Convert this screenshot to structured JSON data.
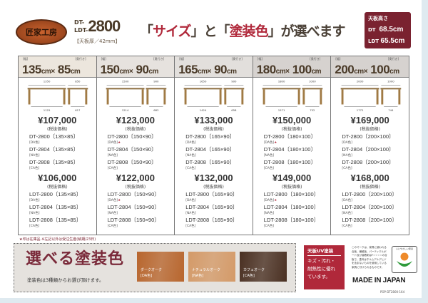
{
  "header": {
    "logo_text": "匠家工房",
    "model_prefix_1": "DT-",
    "model_prefix_2": "LDT-",
    "model_number": "2800",
    "thickness": "【天板厚／42mm】",
    "headline_q1": "「",
    "headline_size": "サイズ",
    "headline_q2": "」と「",
    "headline_color": "塗装色",
    "headline_q3": "」が選べます",
    "height_title": "天板高さ",
    "height_dt_label": "DT",
    "height_dt_value": "68.5cm",
    "height_ldt_label": "LDT",
    "height_ldt_value": "65.5cm"
  },
  "labels": {
    "width": "[幅]",
    "depth": "[奥行き]",
    "tax": "(税抜価格)",
    "cm": "cm",
    "x": "×"
  },
  "columns": [
    {
      "w": "135",
      "d": "85",
      "dims": [
        "1350",
        "850",
        "1125",
        "617"
      ],
      "dt_price": "¥107,000",
      "ldt_price": "¥106,000",
      "dt": [
        {
          "n": "DT-2800〔135×85〕",
          "c": "[DA色]",
          "star": ""
        },
        {
          "n": "DT-2804〔135×85〕",
          "c": "[NA色]",
          "star": ""
        },
        {
          "n": "DT-2808〔135×85〕",
          "c": "[CA色]",
          "star": ""
        }
      ],
      "ldt": [
        {
          "n": "LDT-2800〔135×85〕",
          "c": "[DA色]",
          "star": ""
        },
        {
          "n": "LDT-2804〔135×85〕",
          "c": "[NA色]",
          "star": ""
        },
        {
          "n": "LDT-2808〔135×85〕",
          "c": "[CA色]",
          "star": ""
        }
      ]
    },
    {
      "w": "150",
      "d": "90",
      "dims": [
        "1500",
        "900",
        "1214",
        "683"
      ],
      "dt_price": "¥123,000",
      "ldt_price": "¥122,000",
      "dt": [
        {
          "n": "DT-2800〔150×90〕",
          "c": "[DA色]",
          "star": "★"
        },
        {
          "n": "DT-2804〔150×90〕",
          "c": "[NA色]",
          "star": ""
        },
        {
          "n": "DT-2808〔150×90〕",
          "c": "[CA色]",
          "star": ""
        }
      ],
      "ldt": [
        {
          "n": "LDT-2800〔150×90〕",
          "c": "[DA色]",
          "star": "★"
        },
        {
          "n": "LDT-2804〔150×90〕",
          "c": "[NA色]",
          "star": ""
        },
        {
          "n": "LDT-2808〔150×90〕",
          "c": "[CA色]",
          "star": ""
        }
      ]
    },
    {
      "w": "165",
      "d": "90",
      "dims": [
        "1650",
        "900",
        "1424",
        "658"
      ],
      "dt_price": "¥133,000",
      "ldt_price": "¥132,000",
      "dt": [
        {
          "n": "DT-2800〔165×90〕",
          "c": "[DA色]",
          "star": ""
        },
        {
          "n": "DT-2804〔165×90〕",
          "c": "[NA色]",
          "star": ""
        },
        {
          "n": "DT-2808〔165×90〕",
          "c": "[CA色]",
          "star": ""
        }
      ],
      "ldt": [
        {
          "n": "LDT-2800〔165×90〕",
          "c": "[DA色]",
          "star": ""
        },
        {
          "n": "LDT-2804〔165×90〕",
          "c": "[NA色]",
          "star": ""
        },
        {
          "n": "LDT-2808〔165×90〕",
          "c": "[CA色]",
          "star": ""
        }
      ]
    },
    {
      "w": "180",
      "d": "100",
      "dims": [
        "1800",
        "1000",
        "1571",
        "752"
      ],
      "dt_price": "¥150,000",
      "ldt_price": "¥149,000",
      "dt": [
        {
          "n": "DT-2800〔180×100〕",
          "c": "[DA色]",
          "star": "★"
        },
        {
          "n": "DT-2804〔180×100〕",
          "c": "[NA色]",
          "star": ""
        },
        {
          "n": "DT-2808〔180×100〕",
          "c": "[CA色]",
          "star": ""
        }
      ],
      "ldt": [
        {
          "n": "LDT-2800〔180×100〕",
          "c": "[DA色]",
          "star": "★"
        },
        {
          "n": "LDT-2804〔180×100〕",
          "c": "[NA色]",
          "star": ""
        },
        {
          "n": "LDT-2808〔180×100〕",
          "c": "[CA色]",
          "star": ""
        }
      ]
    },
    {
      "w": "200",
      "d": "100",
      "dims": [
        "2000",
        "1000",
        "1772",
        "744"
      ],
      "dt_price": "¥169,000",
      "ldt_price": "¥168,000",
      "dt": [
        {
          "n": "DT-2800〔200×100〕",
          "c": "[DA色]",
          "star": ""
        },
        {
          "n": "DT-2804〔200×100〕",
          "c": "[NA色]",
          "star": ""
        },
        {
          "n": "DT-2808〔200×100〕",
          "c": "[CA色]",
          "star": ""
        }
      ],
      "ldt": [
        {
          "n": "LDT-2800〔200×100〕",
          "c": "[DA色]",
          "star": ""
        },
        {
          "n": "LDT-2804〔200×100〕",
          "c": "[NA色]",
          "star": ""
        },
        {
          "n": "LDT-2808〔200×100〕",
          "c": "[CA色]",
          "star": ""
        }
      ]
    }
  ],
  "note": "★印は在庫品 ※左記以外は受注生産(納期/23日)",
  "colors": {
    "title": "選べる塗装色",
    "subtitle": "塗装色は3種類からお選び頂けます。",
    "swatches": [
      {
        "name": "ダークオーク",
        "code": "[DA色]",
        "color": "#b8662e"
      },
      {
        "name": "ナチュラルオーク",
        "code": "[NA色]",
        "color": "#d49a68"
      },
      {
        "name": "カフェオーク",
        "code": "[CA色]",
        "color": "#4a3022"
      }
    ]
  },
  "uv": {
    "title": "天板UV塗装",
    "lines": [
      "キズ・汚れ・",
      "耐熱性に優れ",
      "ています。"
    ]
  },
  "eco": {
    "desc": "このマークは、家具に使われる合板、繊維板、パーティクルボード及び接着剤はF☆☆☆☆の合板で、塗料はホルムアルデヒドを含まないものを使用している家具に付けられるものです。",
    "mark_title": "人にやさしい家具"
  },
  "made_in": "MADE IN JAPAN",
  "code": "POP-DT2800-164",
  "accent": "#b0283a"
}
